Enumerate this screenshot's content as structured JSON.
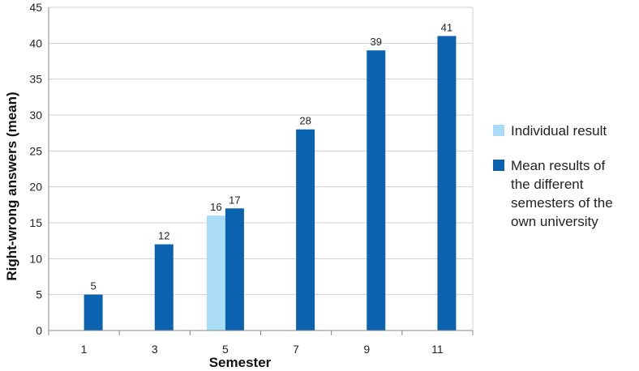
{
  "chart_data": {
    "type": "bar",
    "categories": [
      "1",
      "3",
      "5",
      "7",
      "9",
      "11"
    ],
    "series": [
      {
        "name": "Individual result",
        "color": "#a9dcf7",
        "values": [
          null,
          null,
          16,
          null,
          null,
          null
        ]
      },
      {
        "name": "Mean results of the different semesters of the own university",
        "name_lines": [
          "Mean results of",
          "the different",
          "semesters of the",
          "own university"
        ],
        "color": "#0b63b0",
        "values": [
          5,
          12,
          17,
          28,
          39,
          41
        ]
      }
    ],
    "xlabel": "Semester",
    "ylabel": "Right-wrong answers (mean)",
    "ylim": [
      0,
      45
    ],
    "yticks": [
      0,
      5,
      10,
      15,
      20,
      25,
      30,
      35,
      40,
      45
    ],
    "grid": "horizontal",
    "legend": "right"
  }
}
